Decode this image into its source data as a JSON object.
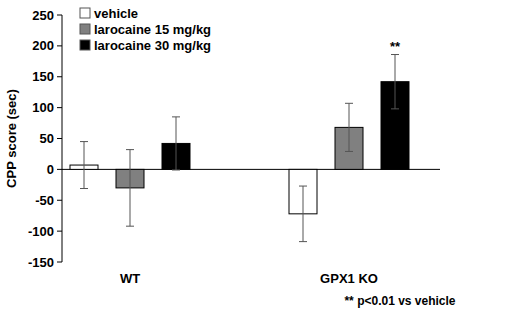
{
  "chart_data": {
    "type": "bar",
    "y_label": "CPP score (sec)",
    "categories": [
      "WT",
      "GPX1 KO"
    ],
    "series": [
      {
        "name": "vehicle",
        "color": "#ffffff",
        "values": [
          7,
          -72
        ],
        "errors": [
          38,
          45
        ]
      },
      {
        "name": "larocaine 15 mg/kg",
        "color": "#808080",
        "values": [
          -30,
          68
        ],
        "errors": [
          62,
          39
        ]
      },
      {
        "name": "larocaine 30 mg/kg",
        "color": "#000000",
        "values": [
          42,
          142
        ],
        "errors": [
          43,
          44
        ],
        "significance": [
          null,
          "**"
        ]
      }
    ],
    "ylim": [
      -150,
      250
    ],
    "yticks": [
      -150,
      -100,
      -50,
      0,
      50,
      100,
      150,
      200,
      250
    ],
    "legend": "top-left",
    "grid": false,
    "annotations": [
      "** p<0.01 vs vehicle"
    ]
  }
}
